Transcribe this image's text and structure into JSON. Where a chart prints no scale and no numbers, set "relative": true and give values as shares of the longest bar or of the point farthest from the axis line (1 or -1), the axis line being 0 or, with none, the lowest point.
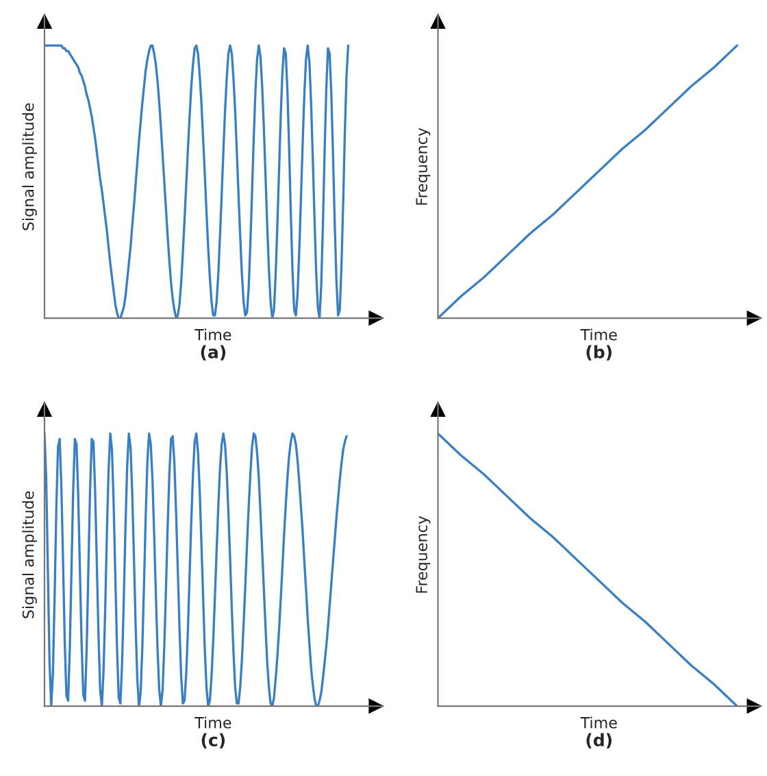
{
  "chart_data": [
    {
      "type": "line",
      "title": "(a)",
      "xlabel": "Time",
      "ylabel": "Signal amplitude",
      "relative": true,
      "categories": [
        null,
        null,
        null,
        null,
        null,
        null,
        null,
        null,
        null,
        null,
        null,
        null,
        null,
        null,
        null,
        null,
        null,
        null,
        null,
        null,
        null,
        null,
        null,
        null,
        null,
        null,
        null,
        null,
        null,
        null,
        null,
        null,
        null,
        null,
        null,
        null,
        null,
        null,
        null,
        null,
        null,
        null,
        null,
        null,
        null,
        null,
        null,
        null,
        null,
        null,
        null,
        null,
        null,
        null,
        null,
        null,
        null,
        null,
        null,
        null,
        null,
        null,
        null,
        null,
        null,
        null,
        null,
        null,
        null,
        null,
        null,
        null,
        null,
        null,
        null,
        null,
        null,
        null,
        null,
        null,
        null,
        null,
        null,
        null,
        null,
        null,
        null,
        null,
        null,
        null,
        null,
        null,
        null,
        null,
        null,
        null,
        null,
        null,
        null,
        null,
        null,
        null,
        null,
        null,
        null,
        null,
        null,
        null,
        null,
        null,
        null,
        null,
        null,
        null,
        null,
        null,
        null,
        null,
        null,
        null,
        null,
        null,
        null,
        null,
        null,
        null,
        null,
        null,
        null,
        null,
        null,
        null,
        null,
        null,
        null,
        null,
        null,
        null,
        null,
        null,
        null,
        null,
        null,
        null,
        null,
        null,
        null,
        null,
        null,
        null,
        null,
        null,
        null,
        null,
        null,
        null,
        null,
        null,
        null,
        null,
        null,
        null,
        null,
        null,
        null,
        null,
        null,
        null,
        null,
        null,
        null,
        null,
        null,
        null,
        null,
        null,
        null,
        null,
        null,
        null,
        null,
        null,
        null,
        null,
        null,
        null,
        null,
        null,
        null,
        null,
        null,
        null,
        null,
        null,
        null,
        null,
        null,
        null,
        null,
        null,
        null
      ],
      "series": [
        {
          "color": "#3a7fc1",
          "values": [
            1,
            1,
            1,
            1,
            1,
            1,
            1,
            1,
            1,
            1,
            1,
            0.99,
            0.99,
            0.98,
            0.98,
            0.97,
            0.96,
            0.95,
            0.94,
            0.93,
            0.92,
            0.9,
            0.89,
            0.87,
            0.85,
            0.82,
            0.8,
            0.77,
            0.74,
            0.7,
            0.66,
            0.61,
            0.56,
            0.51,
            0.47,
            0.42,
            0.37,
            0.32,
            0.26,
            0.2,
            0.15,
            0.1,
            0.05,
            0.02,
            0,
            0,
            0.02,
            0.04,
            0.08,
            0.14,
            0.2,
            0.26,
            0.34,
            0.41,
            0.49,
            0.57,
            0.65,
            0.72,
            0.79,
            0.85,
            0.91,
            0.95,
            0.98,
            1,
            1,
            0.97,
            0.93,
            0.87,
            0.79,
            0.7,
            0.6,
            0.5,
            0.4,
            0.3,
            0.21,
            0.13,
            0.07,
            0.03,
            0,
            0.01,
            0.05,
            0.13,
            0.24,
            0.36,
            0.49,
            0.62,
            0.74,
            0.85,
            0.93,
            0.99,
            1,
            0.97,
            0.89,
            0.79,
            0.66,
            0.53,
            0.39,
            0.26,
            0.15,
            0.06,
            0.01,
            0.01,
            0.06,
            0.16,
            0.3,
            0.45,
            0.61,
            0.76,
            0.88,
            0.97,
            1,
            0.97,
            0.88,
            0.76,
            0.61,
            0.45,
            0.3,
            0.16,
            0.06,
            0.01,
            0.02,
            0.11,
            0.27,
            0.46,
            0.66,
            0.83,
            0.95,
            1,
            0.96,
            0.85,
            0.7,
            0.52,
            0.34,
            0.18,
            0.06,
            0,
            0.03,
            0.16,
            0.34,
            0.54,
            0.74,
            0.9,
            0.99,
            0.97,
            0.83,
            0.62,
            0.38,
            0.17,
            0.03,
            0.01,
            0.09,
            0.25,
            0.44,
            0.64,
            0.82,
            0.95,
            1,
            0.94,
            0.79,
            0.59,
            0.37,
            0.17,
            0.04,
            0,
            0.12,
            0.34,
            0.61,
            0.84,
            0.99,
            0.97,
            0.82,
            0.6,
            0.35,
            0.14,
            0.01,
            0.03,
            0.19,
            0.42,
            0.68,
            0.89,
            1,
            null,
            null,
            null,
            null,
            null,
            null,
            null,
            null,
            null,
            null,
            null,
            null,
            null,
            null,
            null,
            null,
            null,
            null,
            null,
            null
          ]
        }
      ]
    },
    {
      "type": "line",
      "title": "(b)",
      "xlabel": "Time",
      "ylabel": "Frequency",
      "relative": true,
      "categories": [
        null,
        null,
        null,
        null,
        null,
        null,
        null,
        null,
        null,
        null,
        null,
        null,
        null,
        null,
        null
      ],
      "series": [
        {
          "color": "#3a7fc1",
          "values": [
            0,
            0.08,
            0.15,
            0.23,
            0.31,
            0.38,
            0.46,
            0.54,
            0.62,
            0.69,
            0.77,
            0.85,
            0.92,
            1,
            null
          ]
        }
      ]
    },
    {
      "type": "line",
      "title": "(c)",
      "xlabel": "Time",
      "ylabel": "Signal amplitude",
      "relative": true,
      "categories": [
        null,
        null,
        null,
        null,
        null,
        null,
        null,
        null,
        null,
        null,
        null,
        null,
        null,
        null,
        null,
        null,
        null,
        null,
        null,
        null,
        null,
        null,
        null,
        null,
        null,
        null,
        null,
        null,
        null,
        null,
        null,
        null,
        null,
        null,
        null,
        null,
        null,
        null,
        null,
        null,
        null,
        null,
        null,
        null,
        null,
        null,
        null,
        null,
        null,
        null,
        null,
        null,
        null,
        null,
        null,
        null,
        null,
        null,
        null,
        null,
        null,
        null,
        null,
        null,
        null,
        null,
        null,
        null,
        null,
        null,
        null,
        null,
        null,
        null,
        null,
        null,
        null,
        null,
        null,
        null,
        null,
        null,
        null,
        null,
        null,
        null,
        null,
        null,
        null,
        null,
        null,
        null,
        null,
        null,
        null,
        null,
        null,
        null,
        null,
        null,
        null,
        null,
        null,
        null,
        null,
        null,
        null,
        null,
        null,
        null,
        null,
        null,
        null,
        null,
        null,
        null,
        null,
        null,
        null,
        null,
        null,
        null,
        null,
        null,
        null,
        null,
        null,
        null,
        null,
        null,
        null,
        null,
        null,
        null,
        null,
        null,
        null,
        null,
        null,
        null,
        null,
        null,
        null,
        null,
        null,
        null,
        null,
        null,
        null,
        null,
        null,
        null,
        null,
        null,
        null,
        null,
        null,
        null,
        null,
        null,
        null,
        null,
        null,
        null,
        null,
        null,
        null,
        null,
        null,
        null,
        null,
        null,
        null,
        null,
        null,
        null,
        null,
        null,
        null,
        null,
        null,
        null,
        null,
        null,
        null,
        null,
        null,
        null,
        null,
        null,
        null,
        null,
        null,
        null,
        null,
        null,
        null,
        null,
        null,
        null,
        null
      ],
      "series": [
        {
          "color": "#3a7fc1",
          "values": [
            1,
            0.84,
            0.5,
            0.16,
            0,
            0.12,
            0.4,
            0.72,
            0.95,
            0.98,
            0.81,
            0.53,
            0.24,
            0.04,
            0.02,
            0.21,
            0.5,
            0.79,
            0.98,
            0.96,
            0.77,
            0.5,
            0.23,
            0.04,
            0.02,
            0.21,
            0.5,
            0.79,
            0.98,
            0.97,
            0.79,
            0.53,
            0.26,
            0.06,
            0,
            0.13,
            0.36,
            0.64,
            0.87,
            1,
            0.94,
            0.74,
            0.47,
            0.21,
            0.03,
            0.01,
            0.16,
            0.39,
            0.66,
            0.88,
            1,
            0.95,
            0.78,
            0.55,
            0.3,
            0.1,
            0,
            0.05,
            0.22,
            0.45,
            0.7,
            0.9,
            1,
            0.96,
            0.83,
            0.63,
            0.41,
            0.21,
            0.06,
            0,
            0.06,
            0.22,
            0.43,
            0.66,
            0.85,
            0.98,
            0.99,
            0.89,
            0.71,
            0.5,
            0.29,
            0.11,
            0.01,
            0.02,
            0.12,
            0.28,
            0.48,
            0.68,
            0.85,
            0.97,
            1,
            0.93,
            0.79,
            0.6,
            0.4,
            0.21,
            0.07,
            0,
            0.02,
            0.11,
            0.24,
            0.4,
            0.57,
            0.73,
            0.87,
            0.96,
            1,
            0.96,
            0.86,
            0.71,
            0.54,
            0.36,
            0.2,
            0.07,
            0.01,
            0.01,
            0.07,
            0.17,
            0.3,
            0.44,
            0.59,
            0.73,
            0.85,
            0.95,
            1,
            0.99,
            0.93,
            0.84,
            0.71,
            0.57,
            0.43,
            0.29,
            0.16,
            0.07,
            0.01,
            0,
            0.03,
            0.1,
            0.18,
            0.28,
            0.39,
            0.51,
            0.63,
            0.74,
            0.84,
            0.92,
            0.97,
            1,
            0.99,
            0.96,
            0.9,
            0.82,
            0.73,
            0.64,
            0.53,
            0.43,
            0.32,
            0.23,
            0.14,
            0.08,
            0.03,
            0,
            0,
            0.02,
            0.05,
            0.1,
            0.16,
            0.22,
            0.29,
            0.37,
            0.45,
            0.53,
            0.61,
            0.69,
            0.76,
            0.83,
            0.89,
            0.94,
            0.97,
            0.99,
            null,
            null,
            null,
            null,
            null,
            null,
            null,
            null,
            null,
            null,
            null,
            null,
            null,
            null,
            null,
            null,
            null,
            null,
            null,
            null,
            null
          ]
        }
      ]
    },
    {
      "type": "line",
      "title": "(d)",
      "xlabel": "Time",
      "ylabel": "Frequency",
      "relative": true,
      "categories": [
        null,
        null,
        null,
        null,
        null,
        null,
        null,
        null,
        null,
        null,
        null,
        null,
        null,
        null,
        null
      ],
      "series": [
        {
          "color": "#3a7fc1",
          "values": [
            1,
            0.92,
            0.85,
            0.77,
            0.69,
            0.62,
            0.54,
            0.46,
            0.38,
            0.31,
            0.23,
            0.15,
            0.08,
            0,
            null
          ]
        }
      ]
    }
  ]
}
